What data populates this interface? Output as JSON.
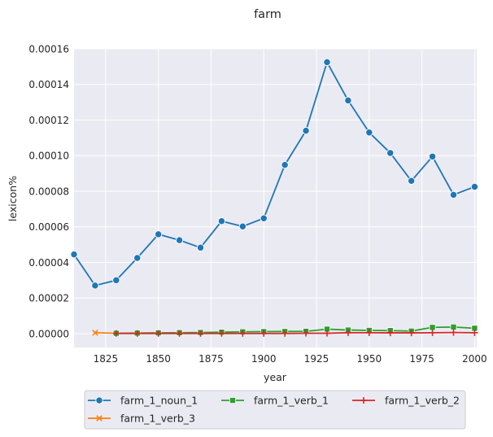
{
  "chart_data": {
    "type": "line",
    "title": "farm",
    "xlabel": "year",
    "ylabel": "lexicon%",
    "xlim": [
      1810,
      2001
    ],
    "ylim": [
      -7.8e-06,
      0.00016
    ],
    "x_ticks": [
      1825,
      1850,
      1875,
      1900,
      1925,
      1950,
      1975,
      2000
    ],
    "x_tick_labels": [
      "1825",
      "1850",
      "1875",
      "1900",
      "1925",
      "1950",
      "1975",
      "2000"
    ],
    "y_ticks": [
      0,
      2e-05,
      4e-05,
      6e-05,
      8e-05,
      0.0001,
      0.00012,
      0.00014,
      0.00016
    ],
    "y_tick_labels": [
      "0.00000",
      "0.00002",
      "0.00004",
      "0.00006",
      "0.00008",
      "0.00010",
      "0.00012",
      "0.00014",
      "0.00016"
    ],
    "grid": true,
    "legend_position": "below the plot, in three columns",
    "series": [
      {
        "name": "farm_1_noun_1",
        "color": "#1f77b4",
        "marker": "circle",
        "x": [
          1810,
          1820,
          1830,
          1840,
          1850,
          1860,
          1870,
          1880,
          1890,
          1900,
          1910,
          1920,
          1930,
          1940,
          1950,
          1960,
          1970,
          1980,
          1990,
          2000
        ],
        "y": [
          4.45e-05,
          2.7e-05,
          3e-05,
          4.25e-05,
          5.58e-05,
          5.25e-05,
          4.83e-05,
          6.32e-05,
          6.02e-05,
          6.48e-05,
          9.48e-05,
          0.000114,
          0.0001525,
          0.000131,
          0.000113,
          0.0001015,
          8.58e-05,
          9.95e-05,
          7.8e-05,
          8.25e-05
        ]
      },
      {
        "name": "farm_1_verb_3",
        "color": "#ff7f0e",
        "marker": "x",
        "x": [
          1820,
          1830
        ],
        "y": [
          5e-07,
          2e-07
        ]
      },
      {
        "name": "farm_1_verb_1",
        "color": "#2ca02c",
        "marker": "square",
        "x": [
          1830,
          1840,
          1850,
          1860,
          1870,
          1880,
          1890,
          1900,
          1910,
          1920,
          1930,
          1940,
          1950,
          1960,
          1970,
          1980,
          1990,
          2000
        ],
        "y": [
          2e-07,
          3e-07,
          4e-07,
          5e-07,
          6e-07,
          8e-07,
          1e-06,
          1.1e-06,
          1.2e-06,
          1.3e-06,
          2.5e-06,
          2e-06,
          1.8e-06,
          1.7e-06,
          1.4e-06,
          3.5e-06,
          3.7e-06,
          3e-06
        ]
      },
      {
        "name": "farm_1_verb_2",
        "color": "#d62728",
        "marker": "plus",
        "x": [
          1830,
          1840,
          1850,
          1860,
          1870,
          1880,
          1890,
          1900,
          1910,
          1920,
          1930,
          1940,
          1950,
          1960,
          1970,
          1980,
          1990,
          2000
        ],
        "y": [
          1e-07,
          1e-07,
          1e-07,
          1e-07,
          1e-07,
          1e-07,
          1e-07,
          1e-07,
          1e-07,
          2e-07,
          2e-07,
          5e-07,
          5e-07,
          4e-07,
          4e-07,
          5e-07,
          6e-07,
          5e-07
        ]
      }
    ],
    "legend_order": [
      "farm_1_noun_1",
      "farm_1_verb_1",
      "farm_1_verb_2",
      "farm_1_verb_3"
    ]
  }
}
